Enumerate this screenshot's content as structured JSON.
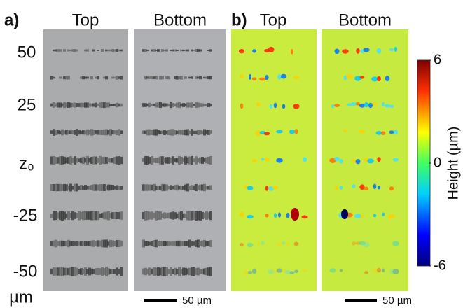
{
  "panel_a": {
    "label": "a)",
    "columns": [
      "Top",
      "Bottom"
    ],
    "scale_bar": "50 µm"
  },
  "panel_b": {
    "label": "b)",
    "columns": [
      "Top",
      "Bottom"
    ],
    "scale_bar": "50 µm"
  },
  "row_labels": [
    "50",
    "25",
    "z₀",
    "-25",
    "-50"
  ],
  "row_unit": "µm",
  "colorbar": {
    "label": "Height (µm)",
    "lim": [
      -6,
      6
    ],
    "ticks": [
      6,
      0,
      -6
    ]
  }
}
